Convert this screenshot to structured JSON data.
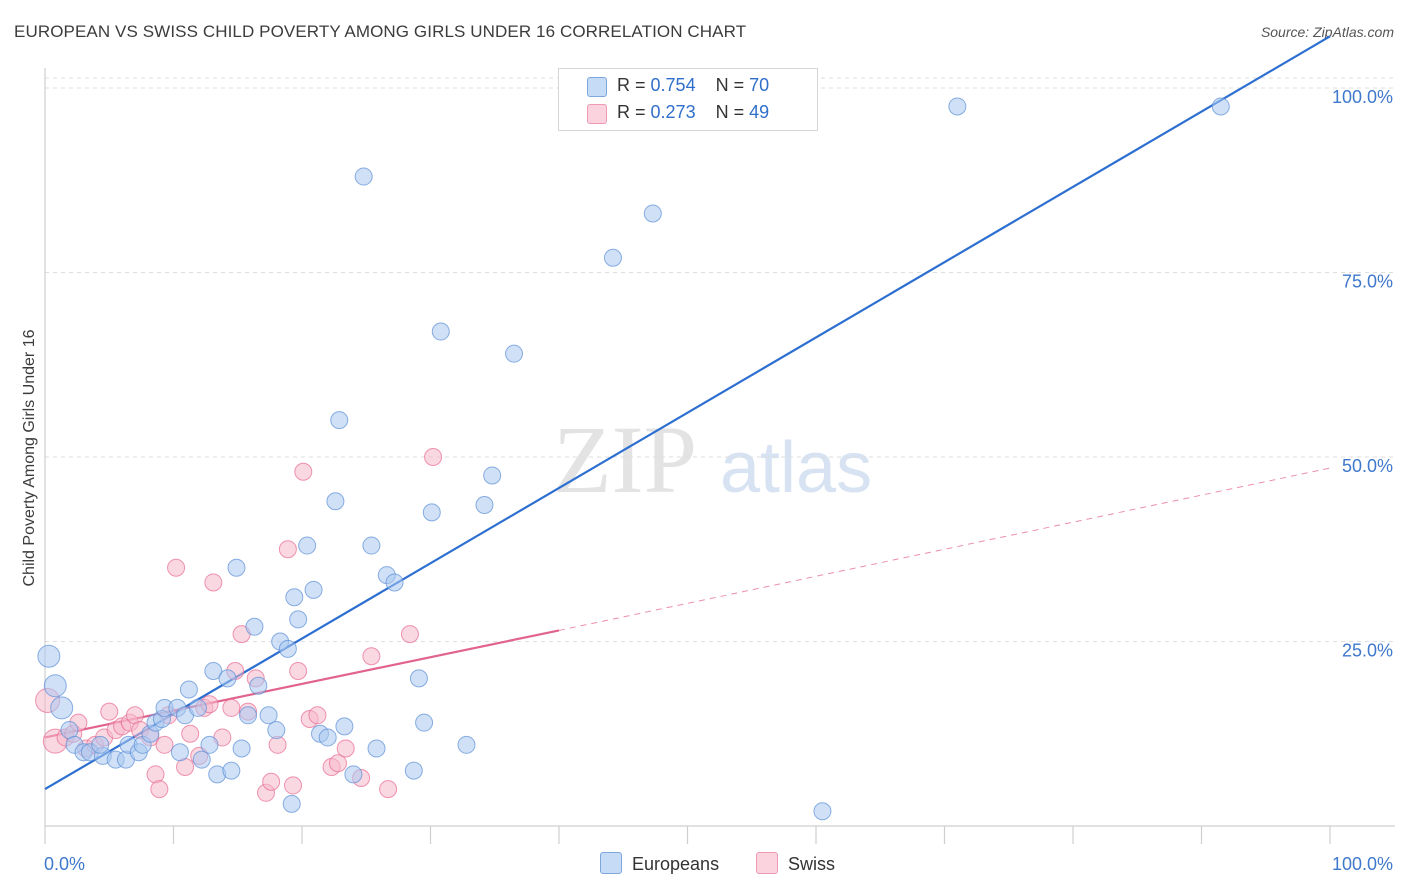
{
  "title": "EUROPEAN VS SWISS CHILD POVERTY AMONG GIRLS UNDER 16 CORRELATION CHART",
  "source": "Source: ZipAtlas.com",
  "watermark": {
    "zip": "ZIP",
    "atlas": "atlas"
  },
  "legend": {
    "rows": [
      {
        "r_label": "R =",
        "r_value": "0.754",
        "n_label": "N =",
        "n_value": "70",
        "color": "#a9c8f0"
      },
      {
        "r_label": "R =",
        "r_value": "0.273",
        "n_label": "N =",
        "n_value": "49",
        "color": "#f6b8cb"
      }
    ]
  },
  "bottom_legend": [
    {
      "label": "Europeans",
      "color": "#a9c8f0"
    },
    {
      "label": "Swiss",
      "color": "#f6b8cb"
    }
  ],
  "chart_data": {
    "type": "scatter",
    "title": "EUROPEAN VS SWISS CHILD POVERTY AMONG GIRLS UNDER 16 CORRELATION CHART",
    "xlabel": "",
    "ylabel": "Child Poverty Among Girls Under 16",
    "xlim": [
      0,
      100
    ],
    "ylim": [
      0,
      100
    ],
    "x_tick_labels": [
      "0.0%",
      "100.0%"
    ],
    "y_tick_labels": [
      "25.0%",
      "50.0%",
      "75.0%",
      "100.0%"
    ],
    "y_ticks": [
      25,
      50,
      75,
      100
    ],
    "grid": true,
    "legend_position": "top-center",
    "series": [
      {
        "name": "Europeans",
        "color": "#5b8fd6",
        "fill": "#a9c8f0",
        "trend": {
          "x": [
            0,
            100
          ],
          "y": [
            5,
            107
          ]
        },
        "points": [
          [
            0.3,
            23
          ],
          [
            0.8,
            19
          ],
          [
            1.3,
            16
          ],
          [
            1.9,
            13
          ],
          [
            2.3,
            11
          ],
          [
            3,
            10
          ],
          [
            3.5,
            10
          ],
          [
            4.5,
            9.5
          ],
          [
            4.3,
            11
          ],
          [
            5.5,
            9
          ],
          [
            6.3,
            9
          ],
          [
            6.5,
            11
          ],
          [
            7.3,
            10
          ],
          [
            7.6,
            11
          ],
          [
            8.2,
            12.5
          ],
          [
            8.6,
            14
          ],
          [
            9.1,
            14.5
          ],
          [
            9.3,
            16
          ],
          [
            10.3,
            16
          ],
          [
            10.5,
            10
          ],
          [
            10.9,
            15
          ],
          [
            11.2,
            18.5
          ],
          [
            11.9,
            16
          ],
          [
            12.2,
            9
          ],
          [
            12.8,
            11
          ],
          [
            13.1,
            21
          ],
          [
            13.4,
            7
          ],
          [
            14.2,
            20
          ],
          [
            14.5,
            7.5
          ],
          [
            15.3,
            10.5
          ],
          [
            15.8,
            15
          ],
          [
            16.3,
            27
          ],
          [
            16.6,
            19
          ],
          [
            17.4,
            15
          ],
          [
            18,
            13
          ],
          [
            18.3,
            25
          ],
          [
            18.9,
            24
          ],
          [
            19.4,
            31
          ],
          [
            19.7,
            28
          ],
          [
            20.4,
            38
          ],
          [
            20.9,
            32
          ],
          [
            21.4,
            12.5
          ],
          [
            22,
            12
          ],
          [
            22.6,
            44
          ],
          [
            22.9,
            55
          ],
          [
            23.3,
            13.5
          ],
          [
            24,
            7
          ],
          [
            24.8,
            88
          ],
          [
            25.4,
            38
          ],
          [
            26.6,
            34
          ],
          [
            27.2,
            33
          ],
          [
            28.7,
            7.5
          ],
          [
            29.1,
            20
          ],
          [
            29.5,
            14
          ],
          [
            30.1,
            42.5
          ],
          [
            30.8,
            67
          ],
          [
            32.8,
            11
          ],
          [
            34.2,
            43.5
          ],
          [
            34.8,
            47.5
          ],
          [
            36.5,
            64
          ],
          [
            44.2,
            77
          ],
          [
            47.3,
            83
          ],
          [
            51.6,
            97.5
          ],
          [
            53.7,
            97.5
          ],
          [
            71,
            97.5
          ],
          [
            91.5,
            97.5
          ],
          [
            60.5,
            2
          ],
          [
            19.2,
            3
          ],
          [
            25.8,
            10.5
          ],
          [
            14.9,
            35
          ]
        ]
      },
      {
        "name": "Swiss",
        "color": "#e86a93",
        "fill": "#f6b8cb",
        "trend": {
          "x": [
            0,
            40
          ],
          "y": [
            12,
            26.5
          ]
        },
        "trend_extended": {
          "x": [
            40,
            100
          ],
          "y": [
            26.5,
            48.5
          ]
        },
        "points": [
          [
            0.2,
            17
          ],
          [
            0.8,
            11.5
          ],
          [
            1.6,
            12
          ],
          [
            2.2,
            12.5
          ],
          [
            2.6,
            14
          ],
          [
            3.2,
            10.5
          ],
          [
            3.9,
            11
          ],
          [
            4.6,
            12
          ],
          [
            5,
            15.5
          ],
          [
            5.5,
            13
          ],
          [
            6,
            13.5
          ],
          [
            6.6,
            14
          ],
          [
            7,
            15
          ],
          [
            7.4,
            13
          ],
          [
            8.2,
            12
          ],
          [
            8.6,
            7
          ],
          [
            8.9,
            5
          ],
          [
            9.3,
            11
          ],
          [
            9.6,
            15
          ],
          [
            10.2,
            35
          ],
          [
            10.9,
            8
          ],
          [
            11.3,
            12.5
          ],
          [
            12,
            9.5
          ],
          [
            12.4,
            16
          ],
          [
            12.8,
            16.5
          ],
          [
            13.1,
            33
          ],
          [
            13.8,
            12
          ],
          [
            14.5,
            16
          ],
          [
            14.8,
            21
          ],
          [
            15.3,
            26
          ],
          [
            15.8,
            15.5
          ],
          [
            16.4,
            20
          ],
          [
            17.2,
            4.5
          ],
          [
            17.6,
            6
          ],
          [
            18.1,
            11
          ],
          [
            18.9,
            37.5
          ],
          [
            19.3,
            5.5
          ],
          [
            19.7,
            21
          ],
          [
            20.1,
            48
          ],
          [
            20.6,
            14.5
          ],
          [
            21.2,
            15
          ],
          [
            22.3,
            8
          ],
          [
            22.8,
            8.5
          ],
          [
            23.4,
            10.5
          ],
          [
            24.6,
            6.5
          ],
          [
            25.4,
            23
          ],
          [
            26.7,
            5
          ],
          [
            28.4,
            26
          ],
          [
            30.2,
            50
          ]
        ]
      }
    ]
  }
}
